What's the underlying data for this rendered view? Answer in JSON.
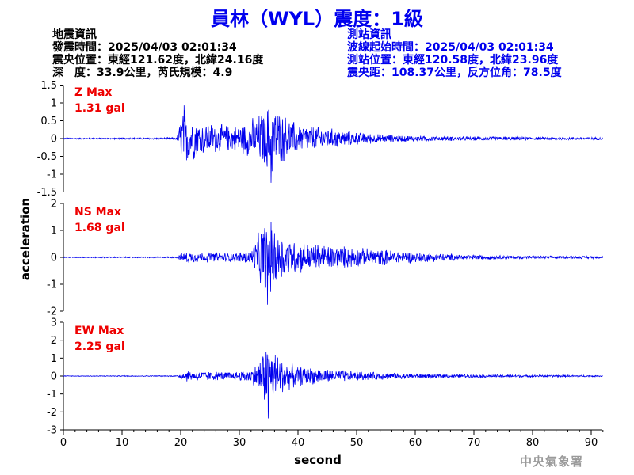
{
  "header": {
    "title": "員林（WYL）震度：1級"
  },
  "info_left": {
    "heading": "地震資訊",
    "origin_time": "發震時間：2025/04/03 02:01:34",
    "epicenter": "震央位置：東經121.62度，北緯24.16度",
    "depth_magnitude": "深　度：33.9公里，芮氏規模：4.9"
  },
  "info_right": {
    "heading": "測站資訊",
    "wave_onset": "波線起始時間：2025/04/03 02:01:34",
    "station_location": "測站位置：東經120.58度，北緯23.96度",
    "distance_azimuth": "震央距：108.37公里，反方位角：78.5度"
  },
  "footer": {
    "org": "中央氣象署"
  },
  "colors": {
    "trace": "#0000ee",
    "max_label": "#ee0000",
    "title": "#0000ee"
  },
  "chart_data": {
    "type": "line",
    "xlabel": "second",
    "ylabel": "acceleration",
    "xlim": [
      0,
      92
    ],
    "x_ticks": [
      0,
      10,
      20,
      30,
      40,
      50,
      60,
      70,
      80,
      90
    ],
    "series": [
      {
        "component": "Z",
        "max_label": "Z Max",
        "max_value": "1.31 gal",
        "ylim": [
          -1.5,
          1.5
        ],
        "y_ticks": [
          -1.5,
          -1,
          -0.5,
          0,
          0.5,
          1,
          1.5
        ],
        "y_tick_labels": [
          "-1.5",
          "-1",
          "-0.5",
          "0",
          "0.5",
          "1",
          "1.5"
        ],
        "envelope": [
          [
            0,
            0.02
          ],
          [
            19.3,
            0.03
          ],
          [
            19.6,
            0.2
          ],
          [
            20,
            0.7
          ],
          [
            20.5,
            1.2
          ],
          [
            21,
            0.8
          ],
          [
            23,
            0.55
          ],
          [
            26,
            0.45
          ],
          [
            29,
            0.38
          ],
          [
            31,
            0.5
          ],
          [
            33,
            0.7
          ],
          [
            34.5,
            0.95
          ],
          [
            35.5,
            1.15
          ],
          [
            37,
            0.8
          ],
          [
            38,
            0.7
          ],
          [
            40,
            0.45
          ],
          [
            43,
            0.38
          ],
          [
            46,
            0.3
          ],
          [
            50,
            0.2
          ],
          [
            55,
            0.12
          ],
          [
            60,
            0.09
          ],
          [
            70,
            0.06
          ],
          [
            80,
            0.05
          ],
          [
            92,
            0.04
          ]
        ],
        "peak_time": 35.4
      },
      {
        "component": "NS",
        "max_label": "NS Max",
        "max_value": "1.68 gal",
        "ylim": [
          -2,
          2
        ],
        "y_ticks": [
          -2,
          -1,
          0,
          1,
          2
        ],
        "y_tick_labels": [
          "-2",
          "-1",
          "0",
          "1",
          "2"
        ],
        "envelope": [
          [
            0,
            0.02
          ],
          [
            19.3,
            0.03
          ],
          [
            19.8,
            0.1
          ],
          [
            20.5,
            0.25
          ],
          [
            23,
            0.2
          ],
          [
            26,
            0.2
          ],
          [
            29,
            0.18
          ],
          [
            32,
            0.3
          ],
          [
            33,
            0.8
          ],
          [
            34,
            1.4
          ],
          [
            35,
            1.65
          ],
          [
            36,
            1.15
          ],
          [
            38,
            0.8
          ],
          [
            40,
            0.65
          ],
          [
            44,
            0.55
          ],
          [
            48,
            0.45
          ],
          [
            52,
            0.35
          ],
          [
            56,
            0.3
          ],
          [
            60,
            0.22
          ],
          [
            65,
            0.15
          ],
          [
            70,
            0.1
          ],
          [
            80,
            0.06
          ],
          [
            92,
            0.05
          ]
        ],
        "peak_time": 34.8
      },
      {
        "component": "EW",
        "max_label": "EW Max",
        "max_value": "2.25 gal",
        "ylim": [
          -3,
          3
        ],
        "y_ticks": [
          -3,
          -2,
          -1,
          0,
          1,
          2,
          3
        ],
        "y_tick_labels": [
          "-3",
          "-2",
          "-1",
          "0",
          "1",
          "2",
          "3"
        ],
        "envelope": [
          [
            0,
            0.02
          ],
          [
            19.3,
            0.03
          ],
          [
            19.8,
            0.15
          ],
          [
            20.5,
            0.35
          ],
          [
            23,
            0.3
          ],
          [
            26,
            0.28
          ],
          [
            29,
            0.25
          ],
          [
            32,
            0.4
          ],
          [
            33,
            0.8
          ],
          [
            34,
            1.5
          ],
          [
            35,
            2.2
          ],
          [
            36,
            1.5
          ],
          [
            38,
            0.9
          ],
          [
            40,
            0.6
          ],
          [
            44,
            0.45
          ],
          [
            48,
            0.35
          ],
          [
            52,
            0.25
          ],
          [
            56,
            0.2
          ],
          [
            60,
            0.15
          ],
          [
            70,
            0.1
          ],
          [
            80,
            0.07
          ],
          [
            92,
            0.05
          ]
        ],
        "peak_time": 34.9
      }
    ]
  }
}
